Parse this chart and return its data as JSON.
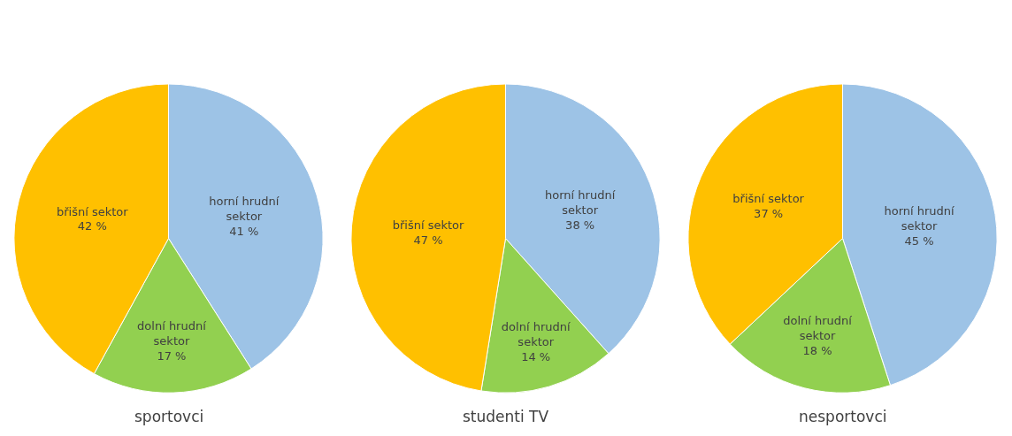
{
  "chart_data": [
    {
      "type": "pie",
      "title": "sportovci",
      "categories": [
        "horní hrudní sektor",
        "dolní hrudní sektor",
        "břišní sektor"
      ],
      "values": [
        41,
        17,
        42
      ],
      "colors": [
        "#9dc3e6",
        "#92d050",
        "#ffc000"
      ],
      "value_labels": [
        "41 %",
        "17 %",
        "42 %"
      ],
      "legend": false
    },
    {
      "type": "pie",
      "title": "studenti TV",
      "categories": [
        "horní hrudní sektor",
        "dolní hrudní sektor",
        "břišní sektor"
      ],
      "values": [
        38,
        14,
        47
      ],
      "colors": [
        "#9dc3e6",
        "#92d050",
        "#ffc000"
      ],
      "value_labels": [
        "38 %",
        "14 %",
        "47 %"
      ],
      "legend": false
    },
    {
      "type": "pie",
      "title": "nesportovci",
      "categories": [
        "horní hrudní sektor",
        "dolní hrudní sektor",
        "břišní sektor"
      ],
      "values": [
        45,
        18,
        37
      ],
      "colors": [
        "#9dc3e6",
        "#92d050",
        "#ffc000"
      ],
      "value_labels": [
        "45 %",
        "18 %",
        "37 %"
      ],
      "legend": false
    }
  ]
}
